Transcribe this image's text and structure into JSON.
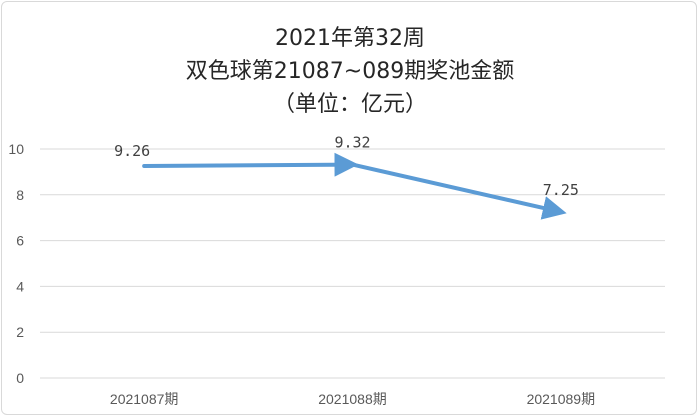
{
  "chart_data": {
    "type": "line",
    "title": [
      "2021年第32周",
      "双色球第21087~089期奖池金额",
      "（单位：亿元）"
    ],
    "categories": [
      "2021087期",
      "2021088期",
      "2021089期"
    ],
    "series": [
      {
        "values": [
          9.26,
          9.32,
          7.25
        ],
        "labels": [
          "9.26",
          "9.32",
          "7.25"
        ],
        "color": "#5b9bd5"
      }
    ],
    "y_ticks": [
      "0",
      "2",
      "4",
      "6",
      "8",
      "10"
    ],
    "ylim": [
      0,
      10
    ],
    "grid": true,
    "legend": "none",
    "line_style": "arrow"
  }
}
